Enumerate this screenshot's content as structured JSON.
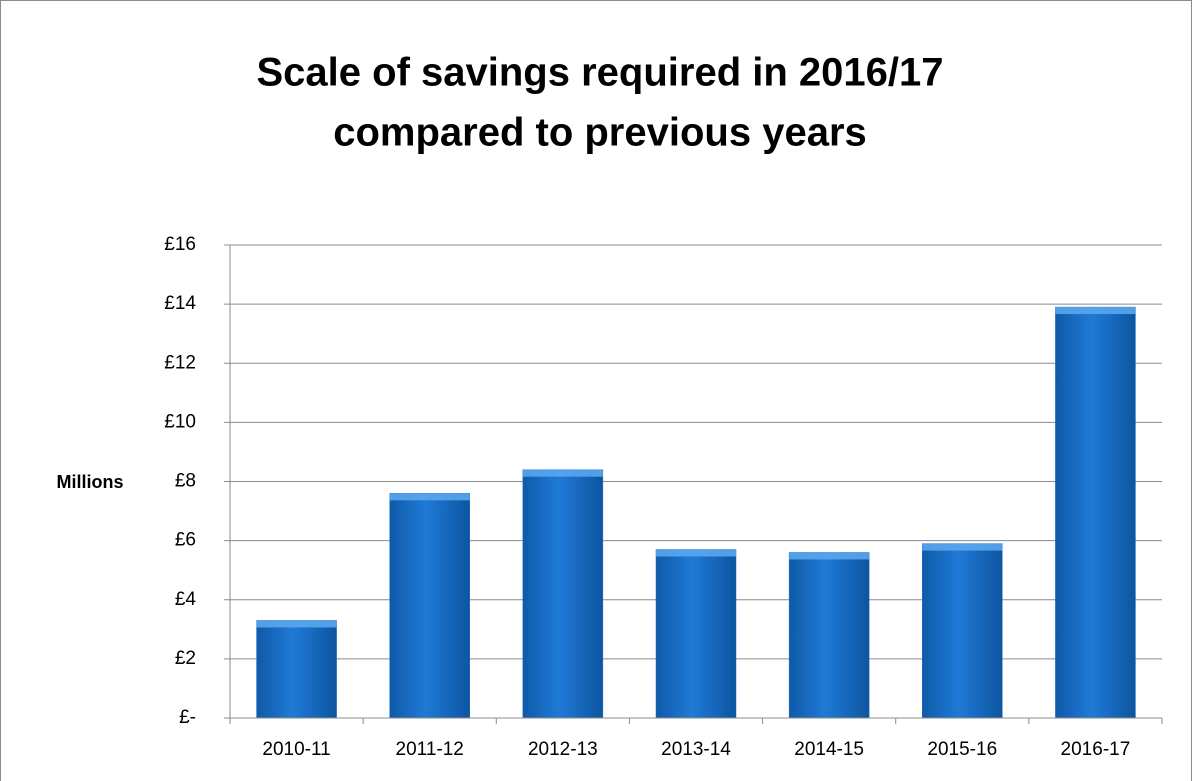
{
  "chart_data": {
    "type": "bar",
    "title": [
      "Scale of savings required in 2016/17",
      "compared to previous years"
    ],
    "y_label": "Millions",
    "categories": [
      "2010-11",
      "2011-12",
      "2012-13",
      "2013-14",
      "2014-15",
      "2015-16",
      "2016-17"
    ],
    "values": [
      3.3,
      7.6,
      8.4,
      5.7,
      5.6,
      5.9,
      13.9
    ],
    "color": "#1a6fc4",
    "ylim": [
      0,
      16
    ],
    "yticks": [
      {
        "value": 0,
        "label": "£-"
      },
      {
        "value": 2,
        "label": "£2"
      },
      {
        "value": 4,
        "label": "£4"
      },
      {
        "value": 6,
        "label": "£6"
      },
      {
        "value": 8,
        "label": "£8"
      },
      {
        "value": 10,
        "label": "£10"
      },
      {
        "value": 12,
        "label": "£12"
      },
      {
        "value": 14,
        "label": "£14"
      },
      {
        "value": 16,
        "label": "£16"
      }
    ],
    "grid": true
  }
}
